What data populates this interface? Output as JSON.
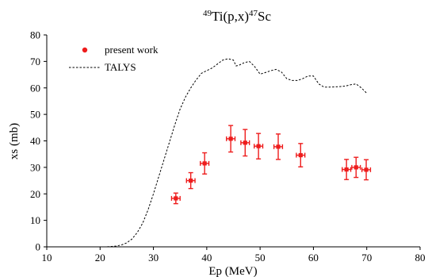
{
  "chart_data": {
    "type": "scatter",
    "title": {
      "sup1": "49",
      "main1": "Ti(p,x)",
      "sup2": "47",
      "main2": "Sc"
    },
    "xlabel": "Ep (MeV)",
    "ylabel": "xs (mb)",
    "xlim": [
      10,
      80
    ],
    "ylim": [
      0,
      80
    ],
    "xticks": [
      "10",
      "20",
      "30",
      "40",
      "50",
      "60",
      "70",
      "80"
    ],
    "yticks": [
      "0",
      "10",
      "20",
      "30",
      "40",
      "50",
      "60",
      "70",
      "80"
    ],
    "grid": false,
    "legend_placement": "top-left",
    "colors": {
      "present_work": "#ee1c1c",
      "talys": "#000000"
    },
    "series": [
      {
        "name": "present work",
        "style": "points-with-errorbars",
        "points": [
          {
            "x": 34.2,
            "y": 18.3,
            "xerr": 0.8,
            "yerr": 2.0
          },
          {
            "x": 37.0,
            "y": 25.0,
            "xerr": 0.8,
            "yerr": 3.0
          },
          {
            "x": 39.6,
            "y": 31.5,
            "xerr": 0.8,
            "yerr": 4.0
          },
          {
            "x": 44.5,
            "y": 40.8,
            "xerr": 0.8,
            "yerr": 5.0
          },
          {
            "x": 47.2,
            "y": 39.3,
            "xerr": 0.8,
            "yerr": 5.0
          },
          {
            "x": 49.7,
            "y": 38.0,
            "xerr": 0.8,
            "yerr": 4.8
          },
          {
            "x": 53.4,
            "y": 37.8,
            "xerr": 0.8,
            "yerr": 4.8
          },
          {
            "x": 57.6,
            "y": 34.6,
            "xerr": 0.8,
            "yerr": 4.4
          },
          {
            "x": 66.2,
            "y": 29.2,
            "xerr": 0.8,
            "yerr": 3.8
          },
          {
            "x": 68.0,
            "y": 30.0,
            "xerr": 0.8,
            "yerr": 3.8
          },
          {
            "x": 69.9,
            "y": 29.1,
            "xerr": 0.8,
            "yerr": 3.8
          }
        ]
      },
      {
        "name": "TALYS",
        "style": "dashed-line",
        "x": [
          20,
          21,
          22,
          23,
          24,
          25,
          26,
          27,
          28,
          29,
          30,
          31,
          32,
          33,
          34,
          35,
          36,
          37,
          38,
          39,
          40,
          41,
          42,
          43,
          44,
          45,
          45.5,
          46,
          47,
          48,
          49,
          50,
          51,
          52,
          53,
          54,
          55,
          56,
          57,
          58,
          59,
          60,
          61,
          62,
          63,
          64,
          65,
          66,
          67,
          68,
          69,
          70
        ],
        "y": [
          0,
          0,
          0.1,
          0.3,
          0.7,
          1.5,
          3,
          5.5,
          9,
          14,
          20,
          26.5,
          33,
          39.5,
          46,
          52,
          56.5,
          60,
          63,
          65.5,
          66.5,
          67.5,
          69,
          70.5,
          71,
          70.5,
          68.3,
          68.5,
          69.5,
          70,
          68,
          65.2,
          65.8,
          66.5,
          67,
          66,
          63.5,
          62.8,
          62.8,
          63.5,
          64.5,
          64.5,
          61.5,
          60.3,
          60.3,
          60.4,
          60.5,
          60.7,
          61.2,
          61.5,
          60,
          58
        ]
      }
    ]
  }
}
